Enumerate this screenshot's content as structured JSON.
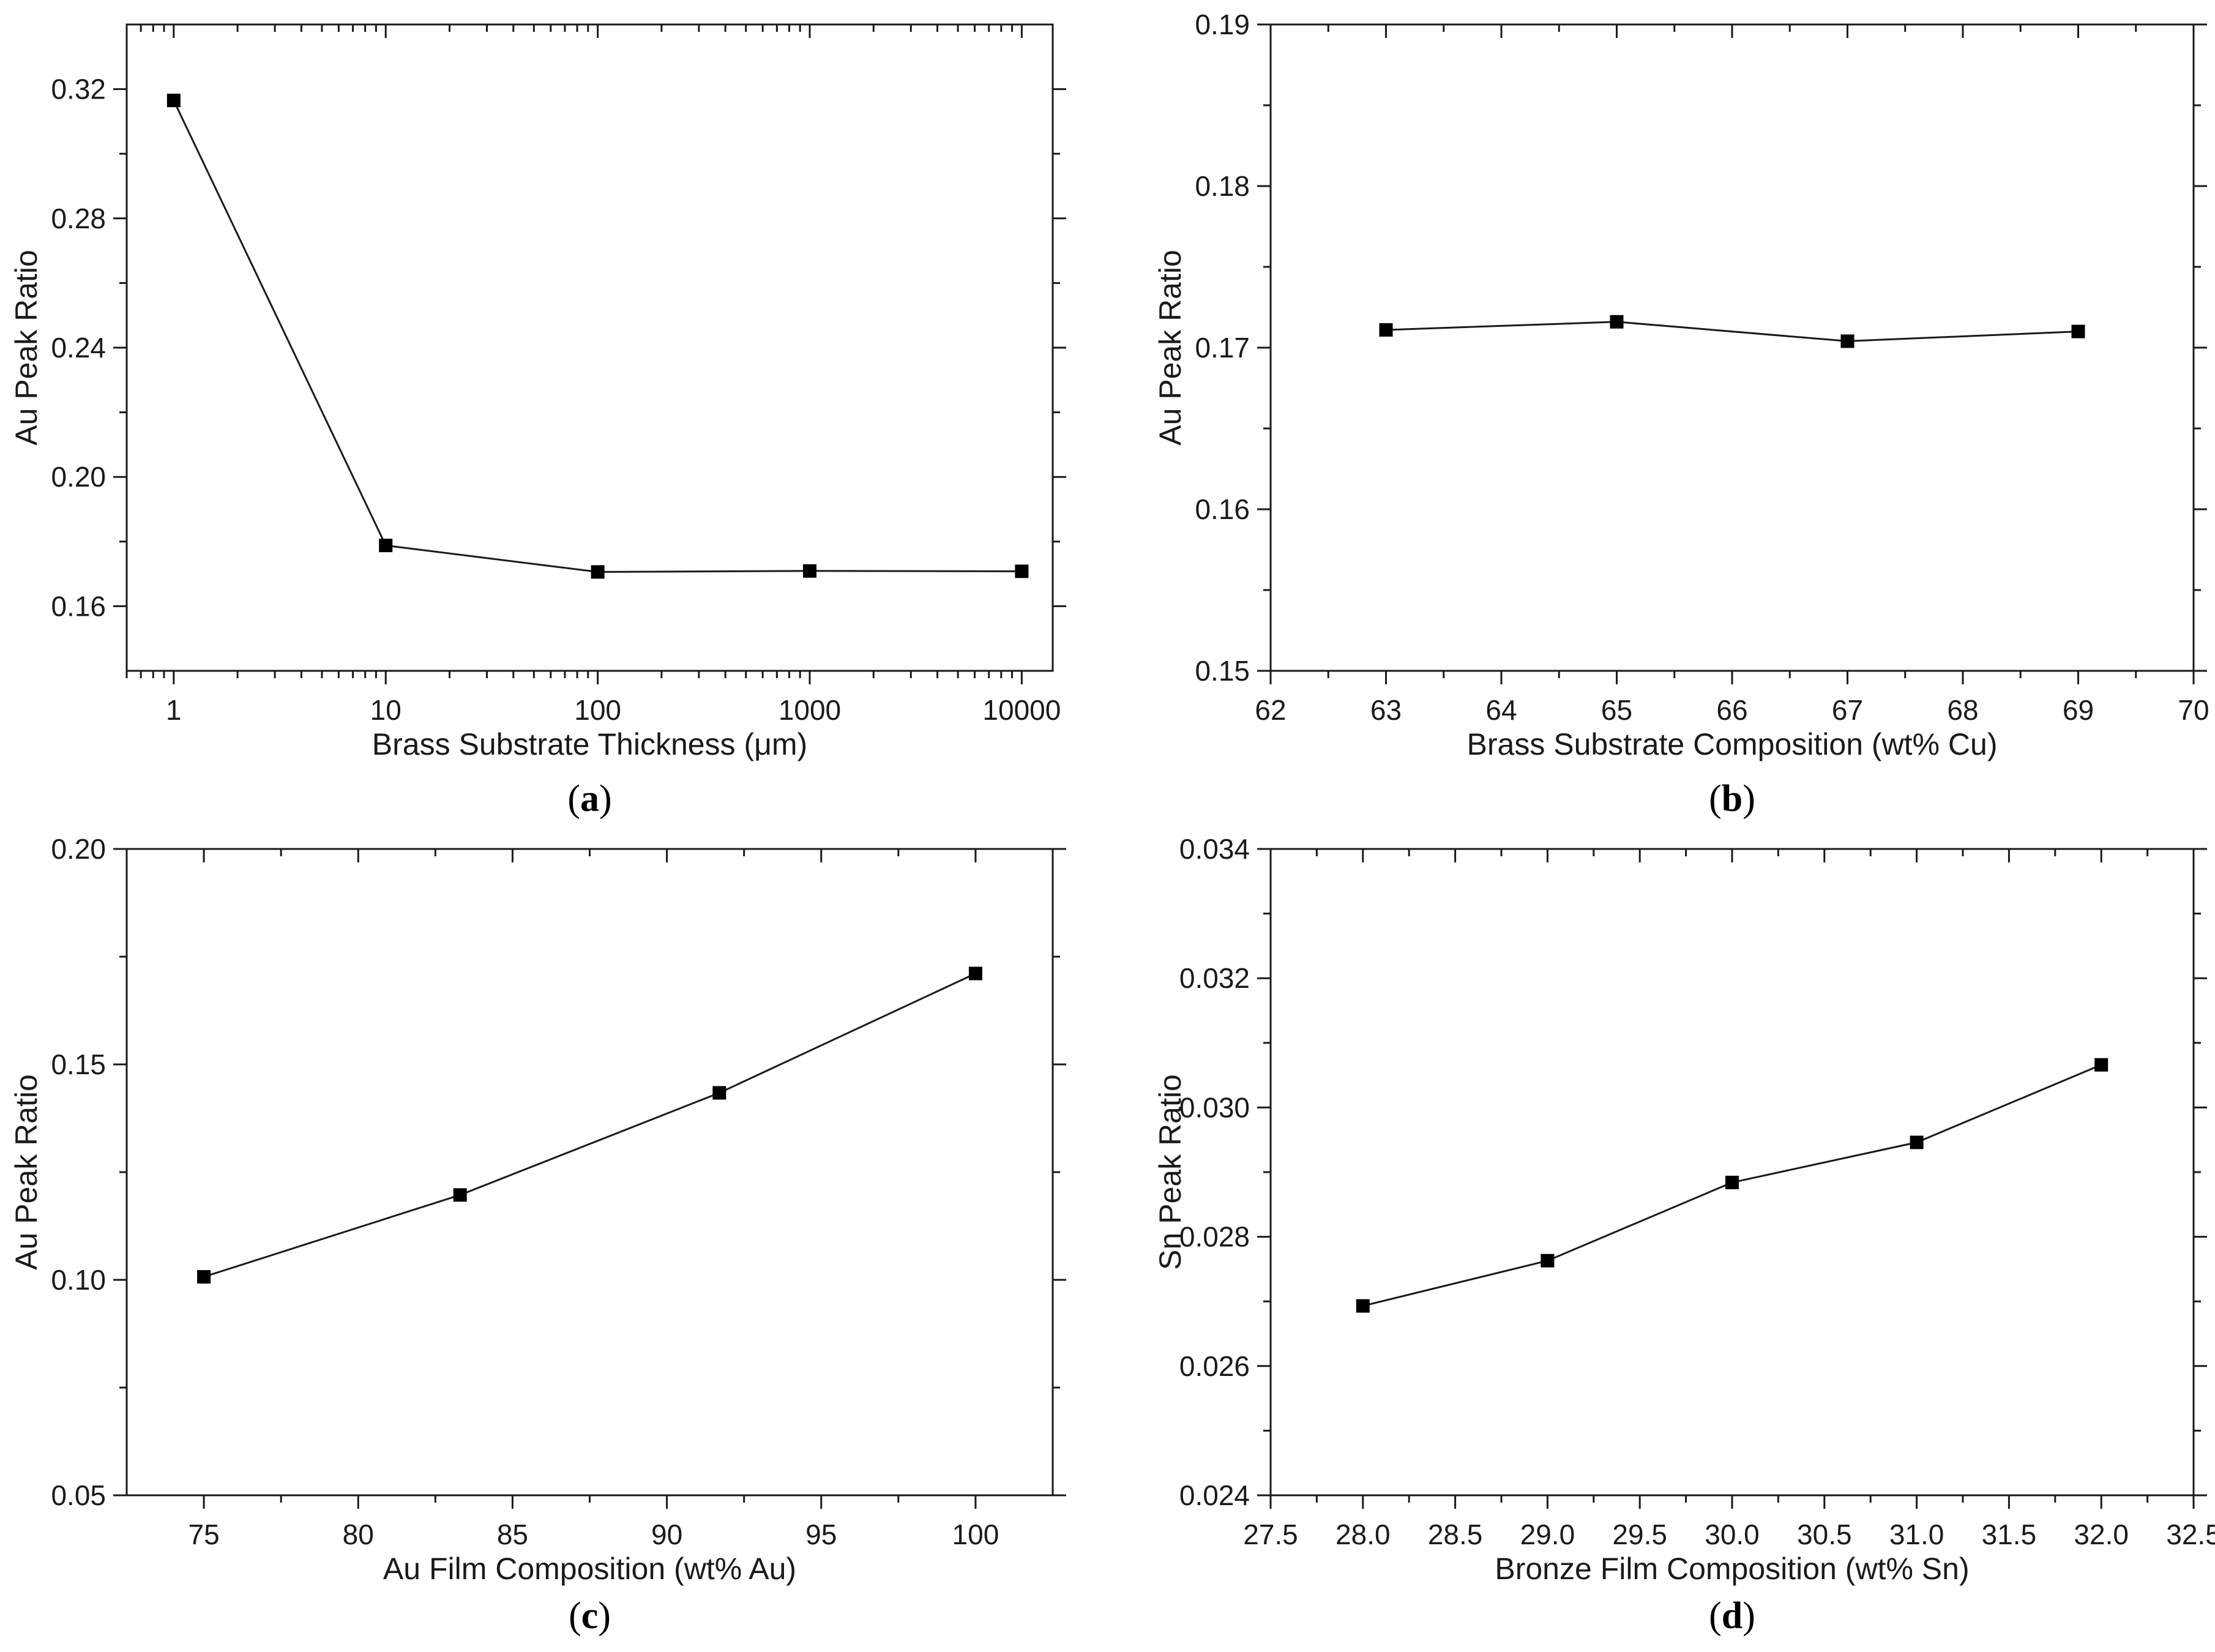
{
  "chart_data": [
    {
      "panel": "a",
      "caption": "a",
      "type": "line",
      "xscale": "log",
      "x": [
        1,
        10,
        100,
        1000,
        10000
      ],
      "values": [
        0.3165,
        0.1788,
        0.1706,
        0.1709,
        0.1708
      ],
      "xlim": [
        0.6,
        14000
      ],
      "ylim": [
        0.14,
        0.34
      ],
      "xticks": [
        1,
        10,
        100,
        1000,
        10000
      ],
      "xtick_labels": [
        "1",
        "10",
        "100",
        "1000",
        "10000"
      ],
      "yticks": [
        0.16,
        0.2,
        0.24,
        0.28,
        0.32
      ],
      "ytick_labels": [
        "0.16",
        "0.20",
        "0.24",
        "0.28",
        "0.32"
      ],
      "xlabel": "Brass Substrate Thickness (μm)",
      "ylabel": "Au Peak Ratio",
      "marker": "square",
      "marker_color": "#000000",
      "line_color": "#1a1a1a"
    },
    {
      "panel": "b",
      "caption": "b",
      "type": "line",
      "xscale": "linear",
      "x": [
        63,
        65,
        67,
        69
      ],
      "values": [
        0.1711,
        0.1716,
        0.1704,
        0.171
      ],
      "xlim": [
        62,
        70
      ],
      "ylim": [
        0.15,
        0.19
      ],
      "xticks": [
        62,
        63,
        64,
        65,
        66,
        67,
        68,
        69,
        70
      ],
      "xtick_labels": [
        "62",
        "63",
        "64",
        "65",
        "66",
        "67",
        "68",
        "69",
        "70"
      ],
      "yticks": [
        0.15,
        0.16,
        0.17,
        0.18,
        0.19
      ],
      "ytick_labels": [
        "0.15",
        "0.16",
        "0.17",
        "0.18",
        "0.19"
      ],
      "xlabel": "Brass Substrate Composition (wt% Cu)",
      "ylabel": "Au Peak Ratio",
      "marker": "square",
      "marker_color": "#000000",
      "line_color": "#1a1a1a"
    },
    {
      "panel": "c",
      "caption": "c",
      "type": "line",
      "xscale": "linear",
      "x": [
        75,
        83.3,
        91.7,
        100
      ],
      "values": [
        0.1007,
        0.1197,
        0.1434,
        0.1711
      ],
      "xlim": [
        72.5,
        102.5
      ],
      "ylim": [
        0.05,
        0.2
      ],
      "xticks": [
        75,
        80,
        85,
        90,
        95,
        100
      ],
      "xtick_labels": [
        "75",
        "80",
        "85",
        "90",
        "95",
        "100"
      ],
      "yticks": [
        0.05,
        0.1,
        0.15,
        0.2
      ],
      "ytick_labels": [
        "0.05",
        "0.10",
        "0.15",
        "0.20"
      ],
      "xlabel": "Au Film Composition (wt% Au)",
      "ylabel": "Au Peak Ratio",
      "marker": "square",
      "marker_color": "#000000",
      "line_color": "#1a1a1a"
    },
    {
      "panel": "d",
      "caption": "d",
      "type": "line",
      "xscale": "linear",
      "x": [
        28,
        29,
        30,
        31,
        32
      ],
      "values": [
        0.02693,
        0.02763,
        0.02884,
        0.02946,
        0.03066
      ],
      "xlim": [
        27.5,
        32.5
      ],
      "ylim": [
        0.024,
        0.034
      ],
      "xticks": [
        27.5,
        28.0,
        28.5,
        29.0,
        29.5,
        30.0,
        30.5,
        31.0,
        31.5,
        32.0,
        32.5
      ],
      "xtick_labels": [
        "27.5",
        "28.0",
        "28.5",
        "29.0",
        "29.5",
        "30.0",
        "30.5",
        "31.0",
        "31.5",
        "32.0",
        "32.5"
      ],
      "yticks": [
        0.024,
        0.026,
        0.028,
        0.03,
        0.032,
        0.034
      ],
      "ytick_labels": [
        "0.024",
        "0.026",
        "0.028",
        "0.030",
        "0.032",
        "0.034"
      ],
      "xlabel": "Bronze Film Composition (wt% Sn)",
      "ylabel": "Sn Peak Ratio",
      "marker": "square",
      "marker_color": "#000000",
      "line_color": "#1a1a1a"
    }
  ]
}
